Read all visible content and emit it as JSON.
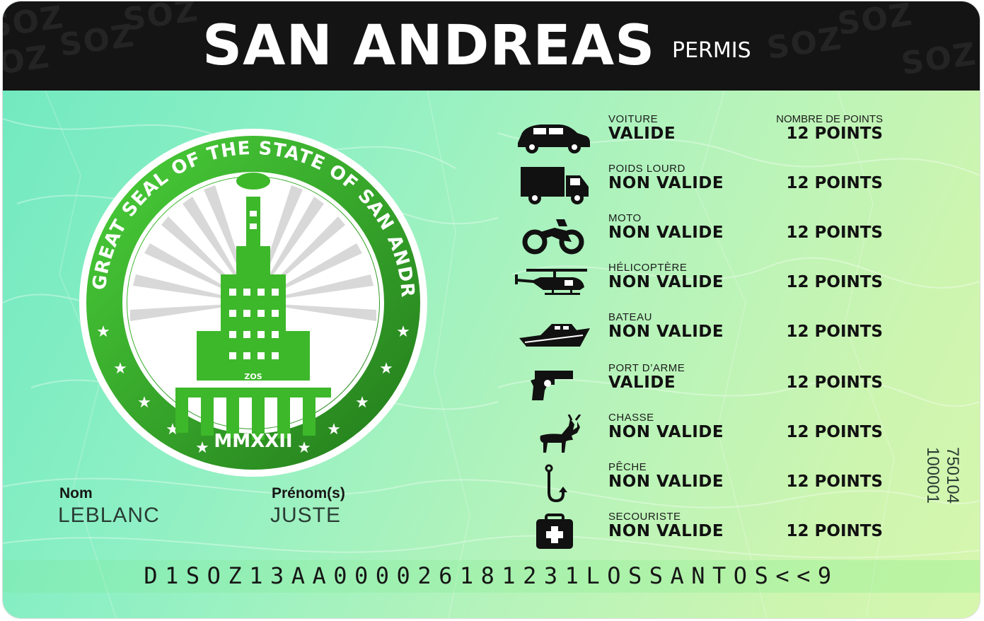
{
  "header": {
    "title": "SAN ANDREAS",
    "subtitle": "PERMIS",
    "watermark": "SOZ"
  },
  "seal": {
    "ring_text": "THE GREAT SEAL OF THE STATE OF SAN ANDREAS",
    "year": "MMXXII",
    "building_mark": "ZOS",
    "accent_color": "#3fb52a"
  },
  "holder": {
    "nom_label": "Nom",
    "nom_value": "LEBLANC",
    "prenom_label": "Prénom(s)",
    "prenom_value": "JUSTE"
  },
  "licenses": {
    "points_header": "NOMBRE DE POINTS",
    "items": [
      {
        "icon": "car-icon",
        "category": "VOITURE",
        "status": "VALIDE",
        "points": "12 POINTS"
      },
      {
        "icon": "truck-icon",
        "category": "POIDS LOURD",
        "status": "NON VALIDE",
        "points": "12 POINTS"
      },
      {
        "icon": "motorcycle-icon",
        "category": "MOTO",
        "status": "NON VALIDE",
        "points": "12 POINTS"
      },
      {
        "icon": "helicopter-icon",
        "category": "HÉLICOPTÈRE",
        "status": "NON VALIDE",
        "points": "12 POINTS"
      },
      {
        "icon": "boat-icon",
        "category": "BATEAU",
        "status": "NON VALIDE",
        "points": "12 POINTS"
      },
      {
        "icon": "gun-icon",
        "category": "PORT D’ARME",
        "status": "VALIDE",
        "points": "12 POINTS"
      },
      {
        "icon": "deer-icon",
        "category": "CHASSE",
        "status": "NON VALIDE",
        "points": "12 POINTS"
      },
      {
        "icon": "fishing-hook-icon",
        "category": "PÊCHE",
        "status": "NON VALIDE",
        "points": "12 POINTS"
      },
      {
        "icon": "first-aid-kit-icon",
        "category": "SECOURISTE",
        "status": "NON VALIDE",
        "points": "12 POINTS"
      }
    ]
  },
  "side_code": {
    "line1": "750104",
    "line2": "100001"
  },
  "mrz": "D1SOZ13AA0000261812​31LOSSANTOS<<9"
}
